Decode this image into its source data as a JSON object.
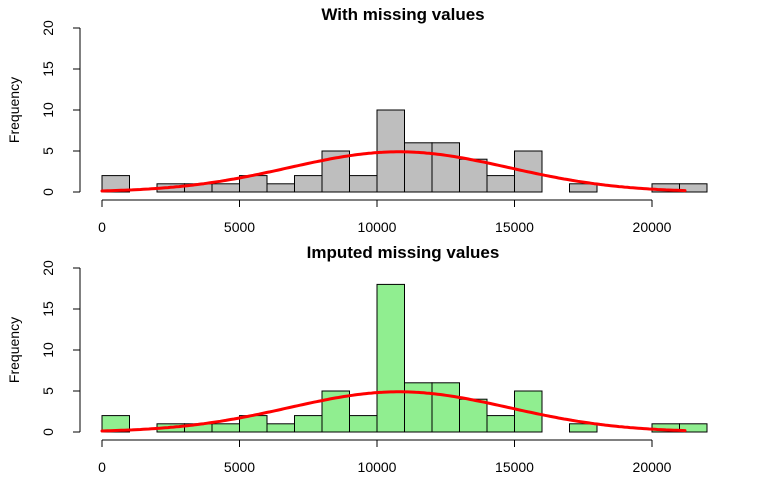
{
  "chart_data": [
    {
      "type": "bar",
      "title": "With missing values",
      "xlabel": "",
      "ylabel": "Frequency",
      "bin_width": 1000,
      "bin_starts": [
        0,
        1000,
        2000,
        3000,
        4000,
        5000,
        6000,
        7000,
        8000,
        9000,
        10000,
        11000,
        12000,
        13000,
        14000,
        15000,
        16000,
        17000,
        18000,
        19000,
        20000,
        21000
      ],
      "counts": [
        2,
        0,
        1,
        1,
        1,
        2,
        1,
        2,
        5,
        2,
        10,
        6,
        6,
        4,
        2,
        5,
        0,
        1,
        0,
        0,
        1,
        1
      ],
      "xticks": [
        0,
        5000,
        10000,
        15000,
        20000
      ],
      "xtick_labels": [
        "0",
        "5000",
        "10000",
        "15000",
        "20000"
      ],
      "yticks": [
        0,
        5,
        10,
        15,
        20
      ],
      "ytick_labels": [
        "0",
        "5",
        "10",
        "15",
        "20"
      ],
      "xlim": [
        0,
        22000
      ],
      "ylim": [
        0,
        20
      ],
      "bar_color": "#bebebe",
      "curve": {
        "type": "normal-density",
        "color": "#ff0000",
        "mean": 10800,
        "peak": 4.9,
        "sd": 4000,
        "x_range": [
          0,
          21200
        ]
      },
      "grid": false
    },
    {
      "type": "bar",
      "title": "Imputed missing values",
      "xlabel": "",
      "ylabel": "Frequency",
      "bin_width": 1000,
      "bin_starts": [
        0,
        1000,
        2000,
        3000,
        4000,
        5000,
        6000,
        7000,
        8000,
        9000,
        10000,
        11000,
        12000,
        13000,
        14000,
        15000,
        16000,
        17000,
        18000,
        19000,
        20000,
        21000
      ],
      "counts": [
        2,
        0,
        1,
        1,
        1,
        2,
        1,
        2,
        5,
        2,
        18,
        6,
        6,
        4,
        2,
        5,
        0,
        1,
        0,
        0,
        1,
        1
      ],
      "xticks": [
        0,
        5000,
        10000,
        15000,
        20000
      ],
      "xtick_labels": [
        "0",
        "5000",
        "10000",
        "15000",
        "20000"
      ],
      "yticks": [
        0,
        5,
        10,
        15,
        20
      ],
      "ytick_labels": [
        "0",
        "5",
        "10",
        "15",
        "20"
      ],
      "xlim": [
        0,
        22000
      ],
      "ylim": [
        0,
        20
      ],
      "bar_color": "#90ee90",
      "curve": {
        "type": "normal-density",
        "color": "#ff0000",
        "mean": 10800,
        "peak": 4.9,
        "sd": 4000,
        "x_range": [
          0,
          21200
        ]
      },
      "grid": false
    }
  ]
}
